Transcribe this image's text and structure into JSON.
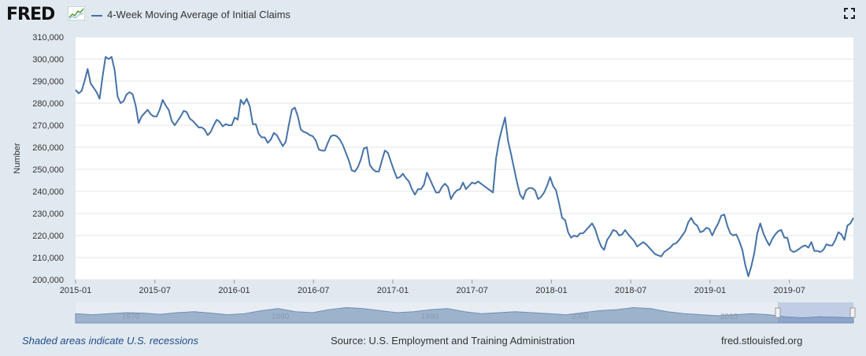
{
  "header": {
    "logo": "FRED",
    "series_name": "4-Week Moving Average of Initial Claims",
    "series_color": "#4572a7",
    "expand_icon": "fullscreen-icon"
  },
  "footer": {
    "recession_note": "Shaded areas indicate U.S. recessions",
    "source": "Source: U.S. Employment and Training Administration",
    "site": "fred.stlouisfed.org"
  },
  "navigator": {
    "labels": [
      "1970",
      "1980",
      "1990",
      "2000",
      "2010"
    ]
  },
  "chart_data": {
    "type": "line",
    "title": "4-Week Moving Average of Initial Claims",
    "ylabel": "Number",
    "xlabel": "",
    "ylim": [
      200000,
      310000
    ],
    "yticks": [
      200000,
      210000,
      220000,
      230000,
      240000,
      250000,
      260000,
      270000,
      280000,
      290000,
      300000,
      310000
    ],
    "ytick_labels": [
      "200,000",
      "210,000",
      "220,000",
      "230,000",
      "240,000",
      "250,000",
      "260,000",
      "270,000",
      "280,000",
      "290,000",
      "300,000",
      "310,000"
    ],
    "xlim_index": [
      0,
      255
    ],
    "xticks": [
      {
        "label": "2015-01",
        "index": 0
      },
      {
        "label": "2015-07",
        "index": 26
      },
      {
        "label": "2016-01",
        "index": 52
      },
      {
        "label": "2016-07",
        "index": 78
      },
      {
        "label": "2017-01",
        "index": 104
      },
      {
        "label": "2017-07",
        "index": 130
      },
      {
        "label": "2018-01",
        "index": 156
      },
      {
        "label": "2018-07",
        "index": 182
      },
      {
        "label": "2019-01",
        "index": 208
      },
      {
        "label": "2019-07",
        "index": 234
      }
    ],
    "series": [
      {
        "name": "4-Week Moving Average of Initial Claims",
        "color": "#4572a7",
        "points": [
          [
            0,
            286000
          ],
          [
            1,
            284500
          ],
          [
            2,
            285500
          ],
          [
            3,
            290000
          ],
          [
            4,
            295500
          ],
          [
            5,
            289000
          ],
          [
            6,
            287000
          ],
          [
            7,
            285000
          ],
          [
            8,
            282000
          ],
          [
            9,
            292000
          ],
          [
            10,
            301000
          ],
          [
            11,
            300000
          ],
          [
            12,
            301000
          ],
          [
            13,
            295000
          ],
          [
            14,
            283000
          ],
          [
            15,
            280000
          ],
          [
            16,
            281000
          ],
          [
            17,
            284000
          ],
          [
            18,
            285000
          ],
          [
            19,
            284000
          ],
          [
            20,
            279000
          ],
          [
            21,
            271000
          ],
          [
            22,
            274000
          ],
          [
            23,
            275500
          ],
          [
            24,
            277000
          ],
          [
            25,
            275000
          ],
          [
            26,
            274000
          ],
          [
            27,
            274000
          ],
          [
            28,
            277000
          ],
          [
            29,
            281500
          ],
          [
            30,
            279000
          ],
          [
            31,
            277000
          ],
          [
            32,
            272000
          ],
          [
            33,
            270000
          ],
          [
            34,
            272000
          ],
          [
            35,
            274000
          ],
          [
            36,
            276500
          ],
          [
            37,
            276000
          ],
          [
            38,
            273000
          ],
          [
            39,
            272000
          ],
          [
            40,
            270500
          ],
          [
            41,
            269000
          ],
          [
            42,
            269000
          ],
          [
            43,
            268000
          ],
          [
            44,
            265500
          ],
          [
            45,
            267000
          ],
          [
            46,
            270000
          ],
          [
            47,
            272500
          ],
          [
            48,
            271500
          ],
          [
            49,
            269500
          ],
          [
            50,
            270500
          ],
          [
            51,
            270000
          ],
          [
            52,
            270000
          ],
          [
            53,
            273500
          ],
          [
            54,
            272500
          ],
          [
            55,
            281500
          ],
          [
            56,
            279500
          ],
          [
            57,
            282000
          ],
          [
            58,
            278500
          ],
          [
            59,
            270500
          ],
          [
            60,
            270500
          ],
          [
            61,
            266000
          ],
          [
            62,
            264500
          ],
          [
            63,
            264500
          ],
          [
            64,
            262000
          ],
          [
            65,
            263500
          ],
          [
            66,
            266500
          ],
          [
            67,
            265500
          ],
          [
            68,
            263000
          ],
          [
            69,
            260500
          ],
          [
            70,
            262500
          ],
          [
            71,
            270000
          ],
          [
            72,
            277000
          ],
          [
            73,
            278000
          ],
          [
            74,
            274000
          ],
          [
            75,
            268000
          ],
          [
            76,
            267000
          ],
          [
            77,
            266500
          ],
          [
            78,
            265500
          ],
          [
            79,
            265000
          ],
          [
            80,
            263000
          ],
          [
            81,
            259000
          ],
          [
            82,
            258500
          ],
          [
            83,
            258500
          ],
          [
            84,
            262000
          ],
          [
            85,
            265000
          ],
          [
            86,
            265500
          ],
          [
            87,
            265000
          ],
          [
            88,
            263500
          ],
          [
            89,
            261000
          ],
          [
            90,
            257500
          ],
          [
            91,
            254000
          ],
          [
            92,
            249500
          ],
          [
            93,
            249000
          ],
          [
            94,
            251000
          ],
          [
            95,
            254500
          ],
          [
            96,
            259500
          ],
          [
            97,
            260000
          ],
          [
            98,
            252000
          ],
          [
            99,
            250000
          ],
          [
            100,
            249000
          ],
          [
            101,
            249000
          ],
          [
            102,
            254000
          ],
          [
            103,
            258500
          ],
          [
            104,
            257500
          ],
          [
            105,
            253500
          ],
          [
            106,
            249500
          ],
          [
            107,
            246000
          ],
          [
            108,
            246500
          ],
          [
            109,
            248000
          ],
          [
            110,
            246000
          ],
          [
            111,
            244500
          ],
          [
            112,
            241000
          ],
          [
            113,
            238500
          ],
          [
            114,
            241000
          ],
          [
            115,
            241000
          ],
          [
            116,
            243000
          ],
          [
            117,
            248500
          ],
          [
            118,
            245500
          ],
          [
            119,
            242500
          ],
          [
            120,
            239500
          ],
          [
            121,
            239500
          ],
          [
            122,
            242000
          ],
          [
            123,
            243500
          ],
          [
            124,
            242000
          ],
          [
            125,
            236500
          ],
          [
            126,
            239000
          ],
          [
            127,
            240500
          ],
          [
            128,
            241000
          ],
          [
            129,
            244000
          ],
          [
            130,
            241000
          ],
          [
            131,
            242500
          ],
          [
            132,
            244000
          ],
          [
            133,
            243500
          ],
          [
            134,
            244500
          ],
          [
            135,
            243500
          ],
          [
            136,
            242500
          ],
          [
            137,
            241500
          ],
          [
            138,
            240500
          ],
          [
            139,
            239500
          ],
          [
            140,
            255000
          ],
          [
            141,
            263000
          ],
          [
            142,
            268500
          ],
          [
            143,
            273500
          ],
          [
            144,
            263000
          ],
          [
            145,
            257000
          ],
          [
            146,
            250500
          ],
          [
            147,
            244000
          ],
          [
            148,
            238500
          ],
          [
            149,
            236500
          ],
          [
            150,
            240500
          ],
          [
            151,
            241500
          ],
          [
            152,
            241500
          ],
          [
            153,
            240500
          ],
          [
            154,
            236500
          ],
          [
            155,
            237500
          ],
          [
            156,
            239500
          ],
          [
            157,
            242500
          ],
          [
            158,
            246500
          ],
          [
            159,
            242500
          ],
          [
            160,
            240500
          ],
          [
            161,
            234500
          ],
          [
            162,
            228000
          ],
          [
            163,
            227000
          ],
          [
            164,
            221500
          ],
          [
            165,
            219000
          ],
          [
            166,
            220000
          ],
          [
            167,
            219500
          ],
          [
            168,
            221000
          ],
          [
            169,
            221000
          ],
          [
            170,
            222500
          ],
          [
            171,
            224000
          ],
          [
            172,
            225500
          ],
          [
            173,
            223000
          ],
          [
            174,
            218500
          ],
          [
            175,
            215000
          ],
          [
            176,
            213500
          ],
          [
            177,
            218000
          ],
          [
            178,
            220000
          ],
          [
            179,
            222500
          ],
          [
            180,
            222000
          ],
          [
            181,
            220000
          ],
          [
            182,
            220500
          ],
          [
            183,
            222500
          ],
          [
            184,
            220500
          ],
          [
            185,
            219000
          ],
          [
            186,
            217500
          ],
          [
            187,
            215000
          ],
          [
            188,
            216000
          ],
          [
            189,
            217000
          ],
          [
            190,
            216000
          ],
          [
            191,
            214500
          ],
          [
            192,
            213000
          ],
          [
            193,
            211500
          ],
          [
            194,
            211000
          ],
          [
            195,
            210500
          ],
          [
            196,
            212500
          ],
          [
            197,
            213500
          ],
          [
            198,
            214500
          ],
          [
            199,
            216000
          ],
          [
            200,
            216500
          ],
          [
            201,
            218000
          ],
          [
            202,
            220000
          ],
          [
            203,
            222000
          ],
          [
            204,
            226000
          ],
          [
            205,
            228000
          ],
          [
            206,
            225500
          ],
          [
            207,
            224500
          ],
          [
            208,
            221500
          ],
          [
            209,
            222000
          ],
          [
            210,
            223500
          ],
          [
            211,
            223000
          ],
          [
            212,
            220000
          ],
          [
            213,
            223000
          ],
          [
            214,
            225500
          ],
          [
            215,
            229000
          ],
          [
            216,
            229500
          ],
          [
            217,
            224500
          ],
          [
            218,
            221000
          ],
          [
            219,
            220000
          ],
          [
            220,
            220500
          ],
          [
            221,
            217500
          ],
          [
            222,
            213500
          ],
          [
            223,
            206500
          ],
          [
            224,
            201500
          ],
          [
            225,
            206000
          ],
          [
            226,
            212000
          ],
          [
            227,
            221000
          ],
          [
            228,
            225500
          ],
          [
            229,
            221000
          ],
          [
            230,
            218000
          ],
          [
            231,
            215500
          ],
          [
            232,
            218500
          ],
          [
            233,
            220500
          ],
          [
            234,
            222000
          ],
          [
            235,
            222500
          ],
          [
            236,
            219000
          ],
          [
            237,
            219000
          ],
          [
            238,
            213500
          ],
          [
            239,
            212500
          ],
          [
            240,
            213000
          ],
          [
            241,
            214000
          ],
          [
            242,
            215000
          ],
          [
            243,
            215500
          ],
          [
            244,
            214500
          ],
          [
            245,
            217000
          ],
          [
            246,
            213000
          ],
          [
            247,
            213000
          ],
          [
            248,
            212500
          ],
          [
            249,
            213500
          ],
          [
            250,
            216000
          ],
          [
            251,
            215500
          ],
          [
            252,
            215500
          ],
          [
            253,
            218000
          ],
          [
            254,
            221500
          ],
          [
            255,
            220500
          ],
          [
            256,
            218000
          ],
          [
            257,
            224500
          ],
          [
            258,
            225500
          ],
          [
            259,
            228000
          ]
        ]
      }
    ]
  }
}
